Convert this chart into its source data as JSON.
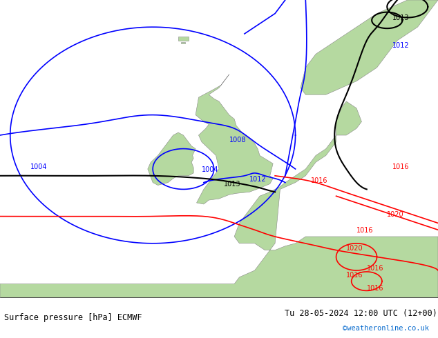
{
  "title_left": "Surface pressure [hPa] ECMWF",
  "title_right": "Tu 28-05-2024 12:00 UTC (12+00)",
  "watermark": "©weatheronline.co.uk",
  "bg_color": "#d8d8d8",
  "land_color": "#b5d9a0",
  "sea_color": "#e8e8e8",
  "fig_width": 6.34,
  "fig_height": 4.9,
  "dpi": 100,
  "bottom_bar_height": 0.12,
  "contour_blue_color": "#0000ff",
  "contour_black_color": "#000000",
  "contour_red_color": "#ff0000",
  "label_fontsize": 7,
  "title_fontsize": 8.5,
  "watermark_color": "#0066cc"
}
